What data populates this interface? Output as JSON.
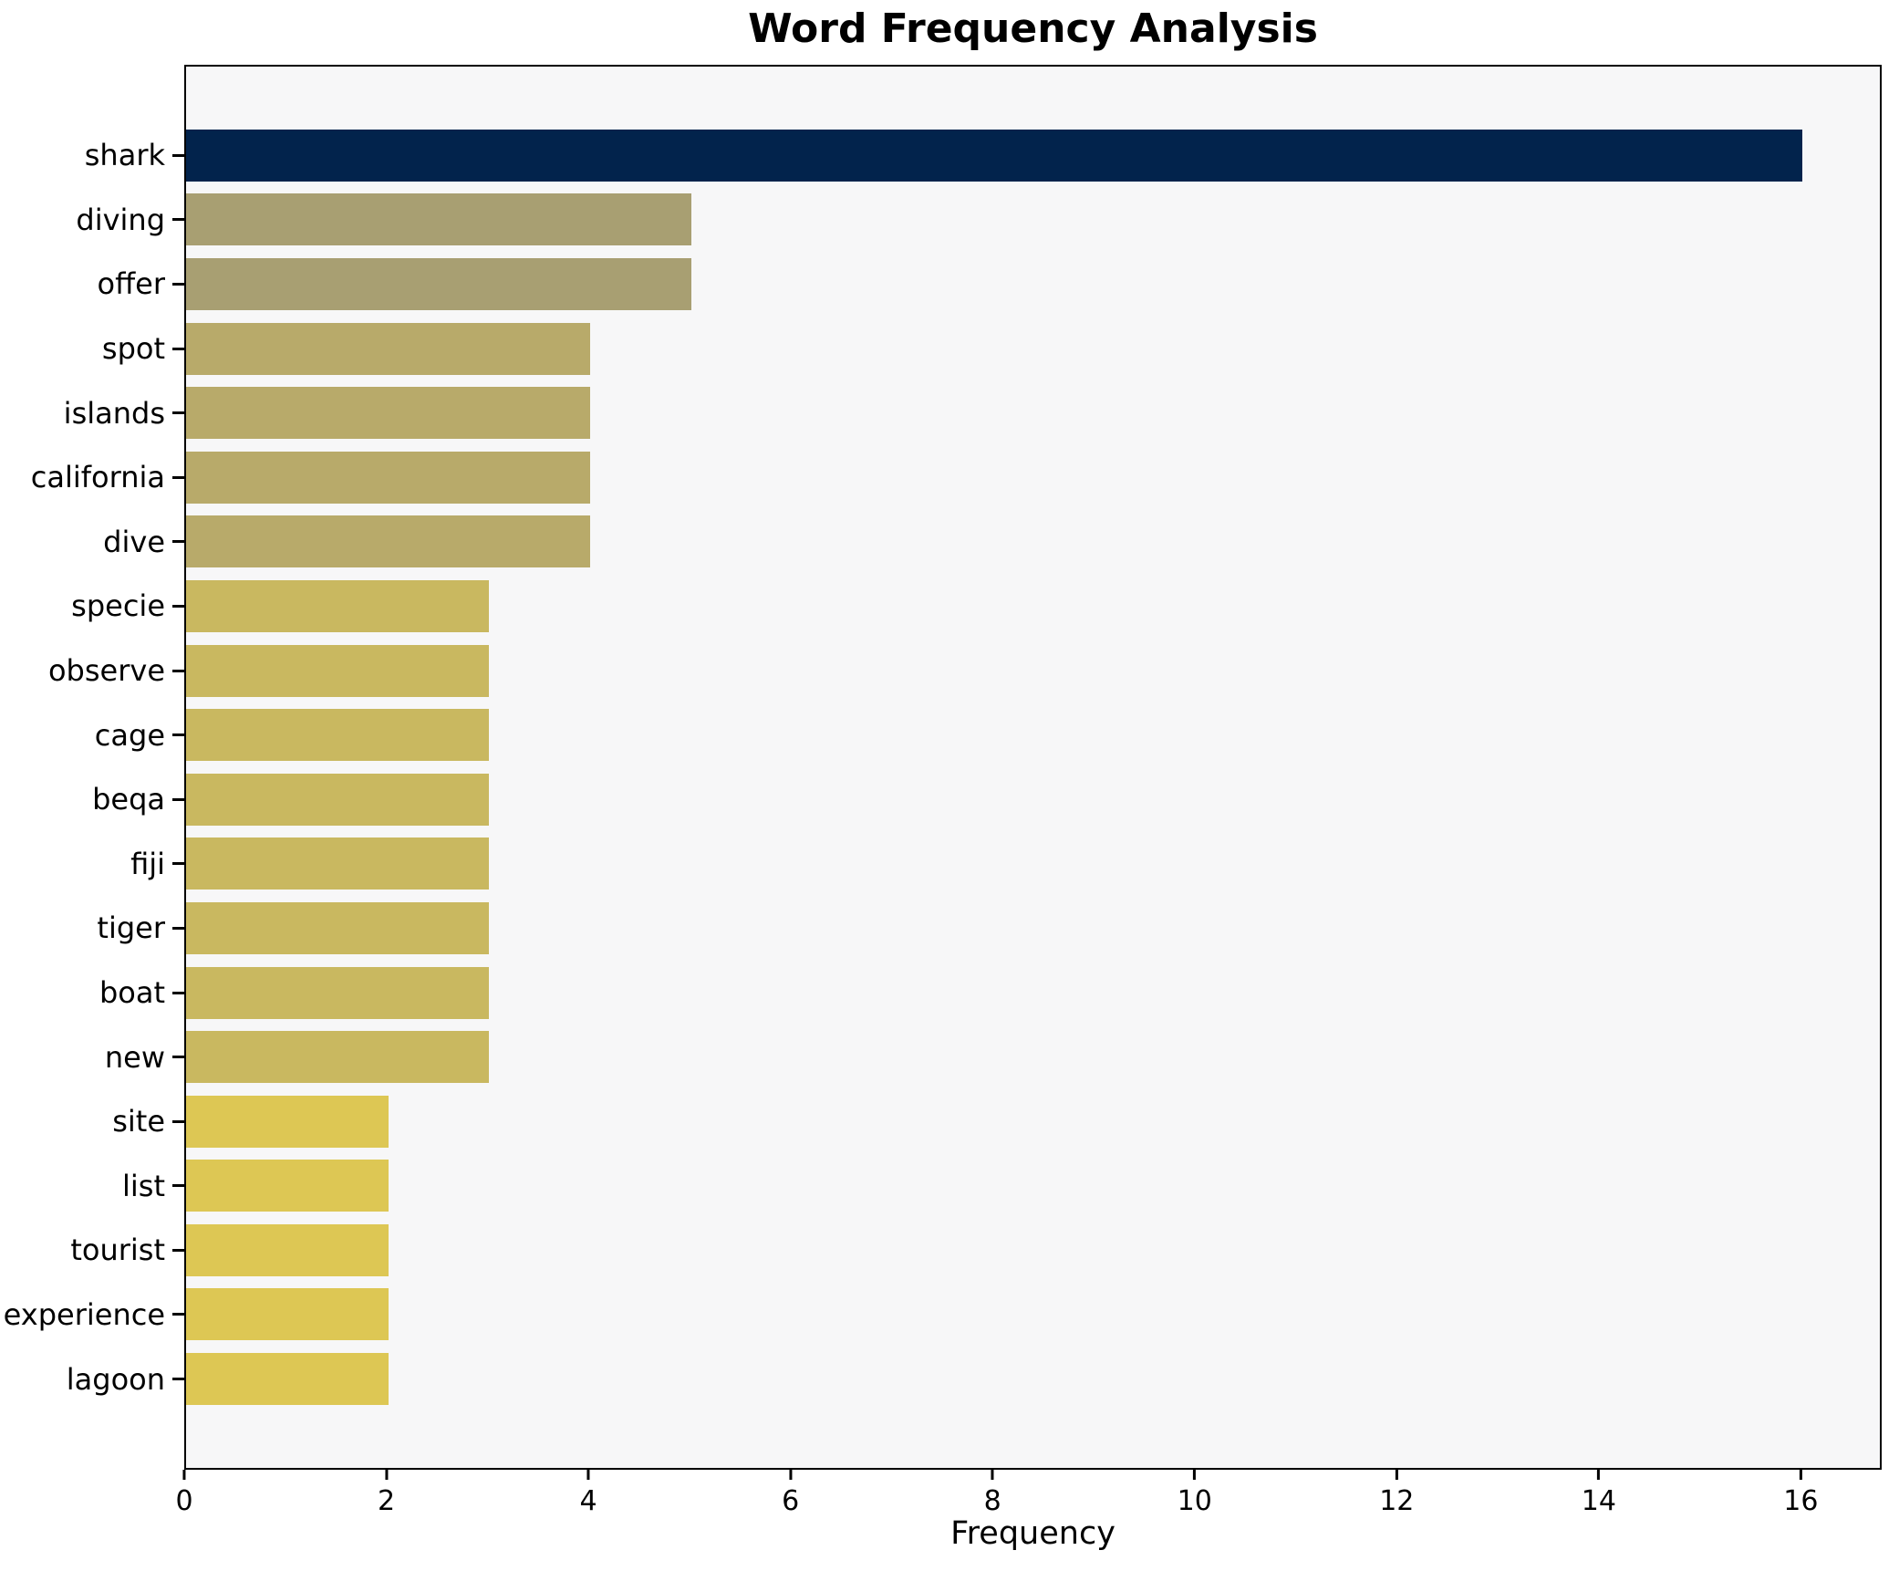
{
  "chart_data": {
    "type": "bar",
    "orientation": "horizontal",
    "title": "Word Frequency Analysis",
    "xlabel": "Frequency",
    "ylabel": "",
    "categories": [
      "shark",
      "diving",
      "offer",
      "spot",
      "islands",
      "california",
      "dive",
      "specie",
      "observe",
      "cage",
      "beqa",
      "fiji",
      "tiger",
      "boat",
      "new",
      "site",
      "list",
      "tourist",
      "experience",
      "lagoon"
    ],
    "values": [
      16,
      5,
      5,
      4,
      4,
      4,
      4,
      3,
      3,
      3,
      3,
      3,
      3,
      3,
      3,
      2,
      2,
      2,
      2,
      2
    ],
    "bar_colors": [
      "#02234c",
      "#a89f72",
      "#a89f72",
      "#b8aa6a",
      "#b8aa6a",
      "#b8aa6a",
      "#b8aa6a",
      "#c9b860",
      "#c9b860",
      "#c9b860",
      "#c9b860",
      "#c9b860",
      "#c9b860",
      "#c9b860",
      "#c9b860",
      "#ddc754",
      "#ddc754",
      "#ddc754",
      "#ddc754",
      "#ddc754"
    ],
    "xticks": [
      0,
      2,
      4,
      6,
      8,
      10,
      12,
      14,
      16
    ],
    "xlim": [
      0,
      16.8
    ],
    "grid": false,
    "legend_position": "none",
    "colors": {
      "figure_background": "#ffffff",
      "plot_background": "#f7f7f8",
      "axis_spine": "#000000",
      "text": "#000000"
    }
  }
}
